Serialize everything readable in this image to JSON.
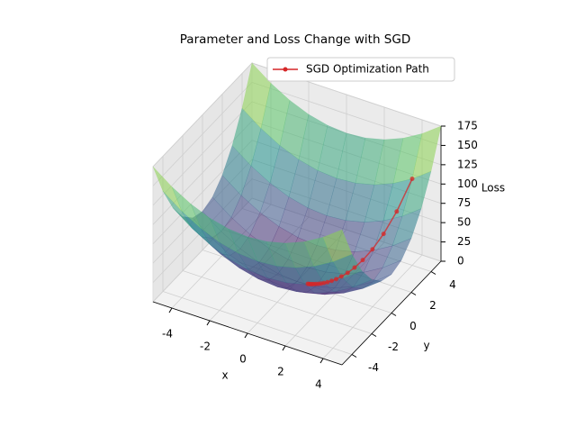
{
  "chart_data": {
    "type": "surface3d",
    "title": "Parameter and Loss Change with SGD",
    "xlabel": "x",
    "ylabel": "y",
    "zlabel": "Loss",
    "xlim": [
      -5,
      5
    ],
    "ylim": [
      -5,
      5
    ],
    "zlim": [
      0,
      175
    ],
    "xticks": [
      -4,
      -2,
      0,
      2,
      4
    ],
    "yticks": [
      -4,
      -2,
      0,
      2,
      4
    ],
    "zticks": [
      0,
      25,
      50,
      75,
      100,
      125,
      150,
      175
    ],
    "grid": true,
    "legend": "upper right",
    "surface": {
      "x": [
        -5,
        -4,
        -3,
        -2,
        -1,
        0,
        1,
        2,
        3,
        4,
        5
      ],
      "y": [
        -5,
        -4,
        -3,
        -2,
        -1,
        0,
        1,
        2,
        3,
        4,
        5
      ],
      "z": [
        [
          175,
          157,
          143,
          133,
          127,
          125,
          127,
          133,
          143,
          157,
          175
        ],
        [
          130,
          112,
          98,
          88,
          82,
          80,
          82,
          88,
          98,
          112,
          130
        ],
        [
          95,
          77,
          63,
          53,
          47,
          45,
          47,
          53,
          63,
          77,
          95
        ],
        [
          70,
          52,
          38,
          28,
          22,
          20,
          22,
          28,
          38,
          52,
          70
        ],
        [
          55,
          37,
          23,
          13,
          7,
          5,
          7,
          13,
          23,
          37,
          55
        ],
        [
          50,
          32,
          18,
          8,
          2,
          0,
          2,
          8,
          18,
          32,
          50
        ],
        [
          55,
          37,
          23,
          13,
          7,
          5,
          7,
          13,
          23,
          37,
          55
        ],
        [
          70,
          52,
          38,
          28,
          22,
          20,
          22,
          28,
          38,
          52,
          70
        ],
        [
          95,
          77,
          63,
          53,
          47,
          45,
          47,
          53,
          63,
          77,
          95
        ],
        [
          130,
          112,
          98,
          88,
          82,
          80,
          82,
          88,
          98,
          112,
          130
        ],
        [
          175,
          157,
          143,
          133,
          127,
          125,
          127,
          133,
          143,
          157,
          175
        ]
      ]
    },
    "series": [
      {
        "name": "SGD Optimization Path",
        "color": "#d62728",
        "x": [
          4,
          3.6,
          3.24,
          2.92,
          2.62,
          2.36,
          2.13,
          1.91,
          1.72,
          1.55,
          1.39,
          1.25,
          1.13,
          1.02,
          0.91,
          0.82,
          0.74,
          0.67,
          0.6,
          0.54
        ],
        "y": [
          4,
          3.2,
          2.56,
          2.05,
          1.64,
          1.31,
          1.05,
          0.84,
          0.67,
          0.54,
          0.43,
          0.34,
          0.27,
          0.22,
          0.18,
          0.14,
          0.11,
          0.09,
          0.07,
          0.06
        ],
        "z": [
          112,
          77.12,
          53.77,
          38.06,
          27.18,
          19.72,
          14.58,
          10.83,
          8.16,
          6.27,
          4.78,
          3.71,
          2.91,
          2.32,
          1.82,
          1.44,
          1.16,
          0.94,
          0.74,
          0.6
        ]
      }
    ]
  }
}
